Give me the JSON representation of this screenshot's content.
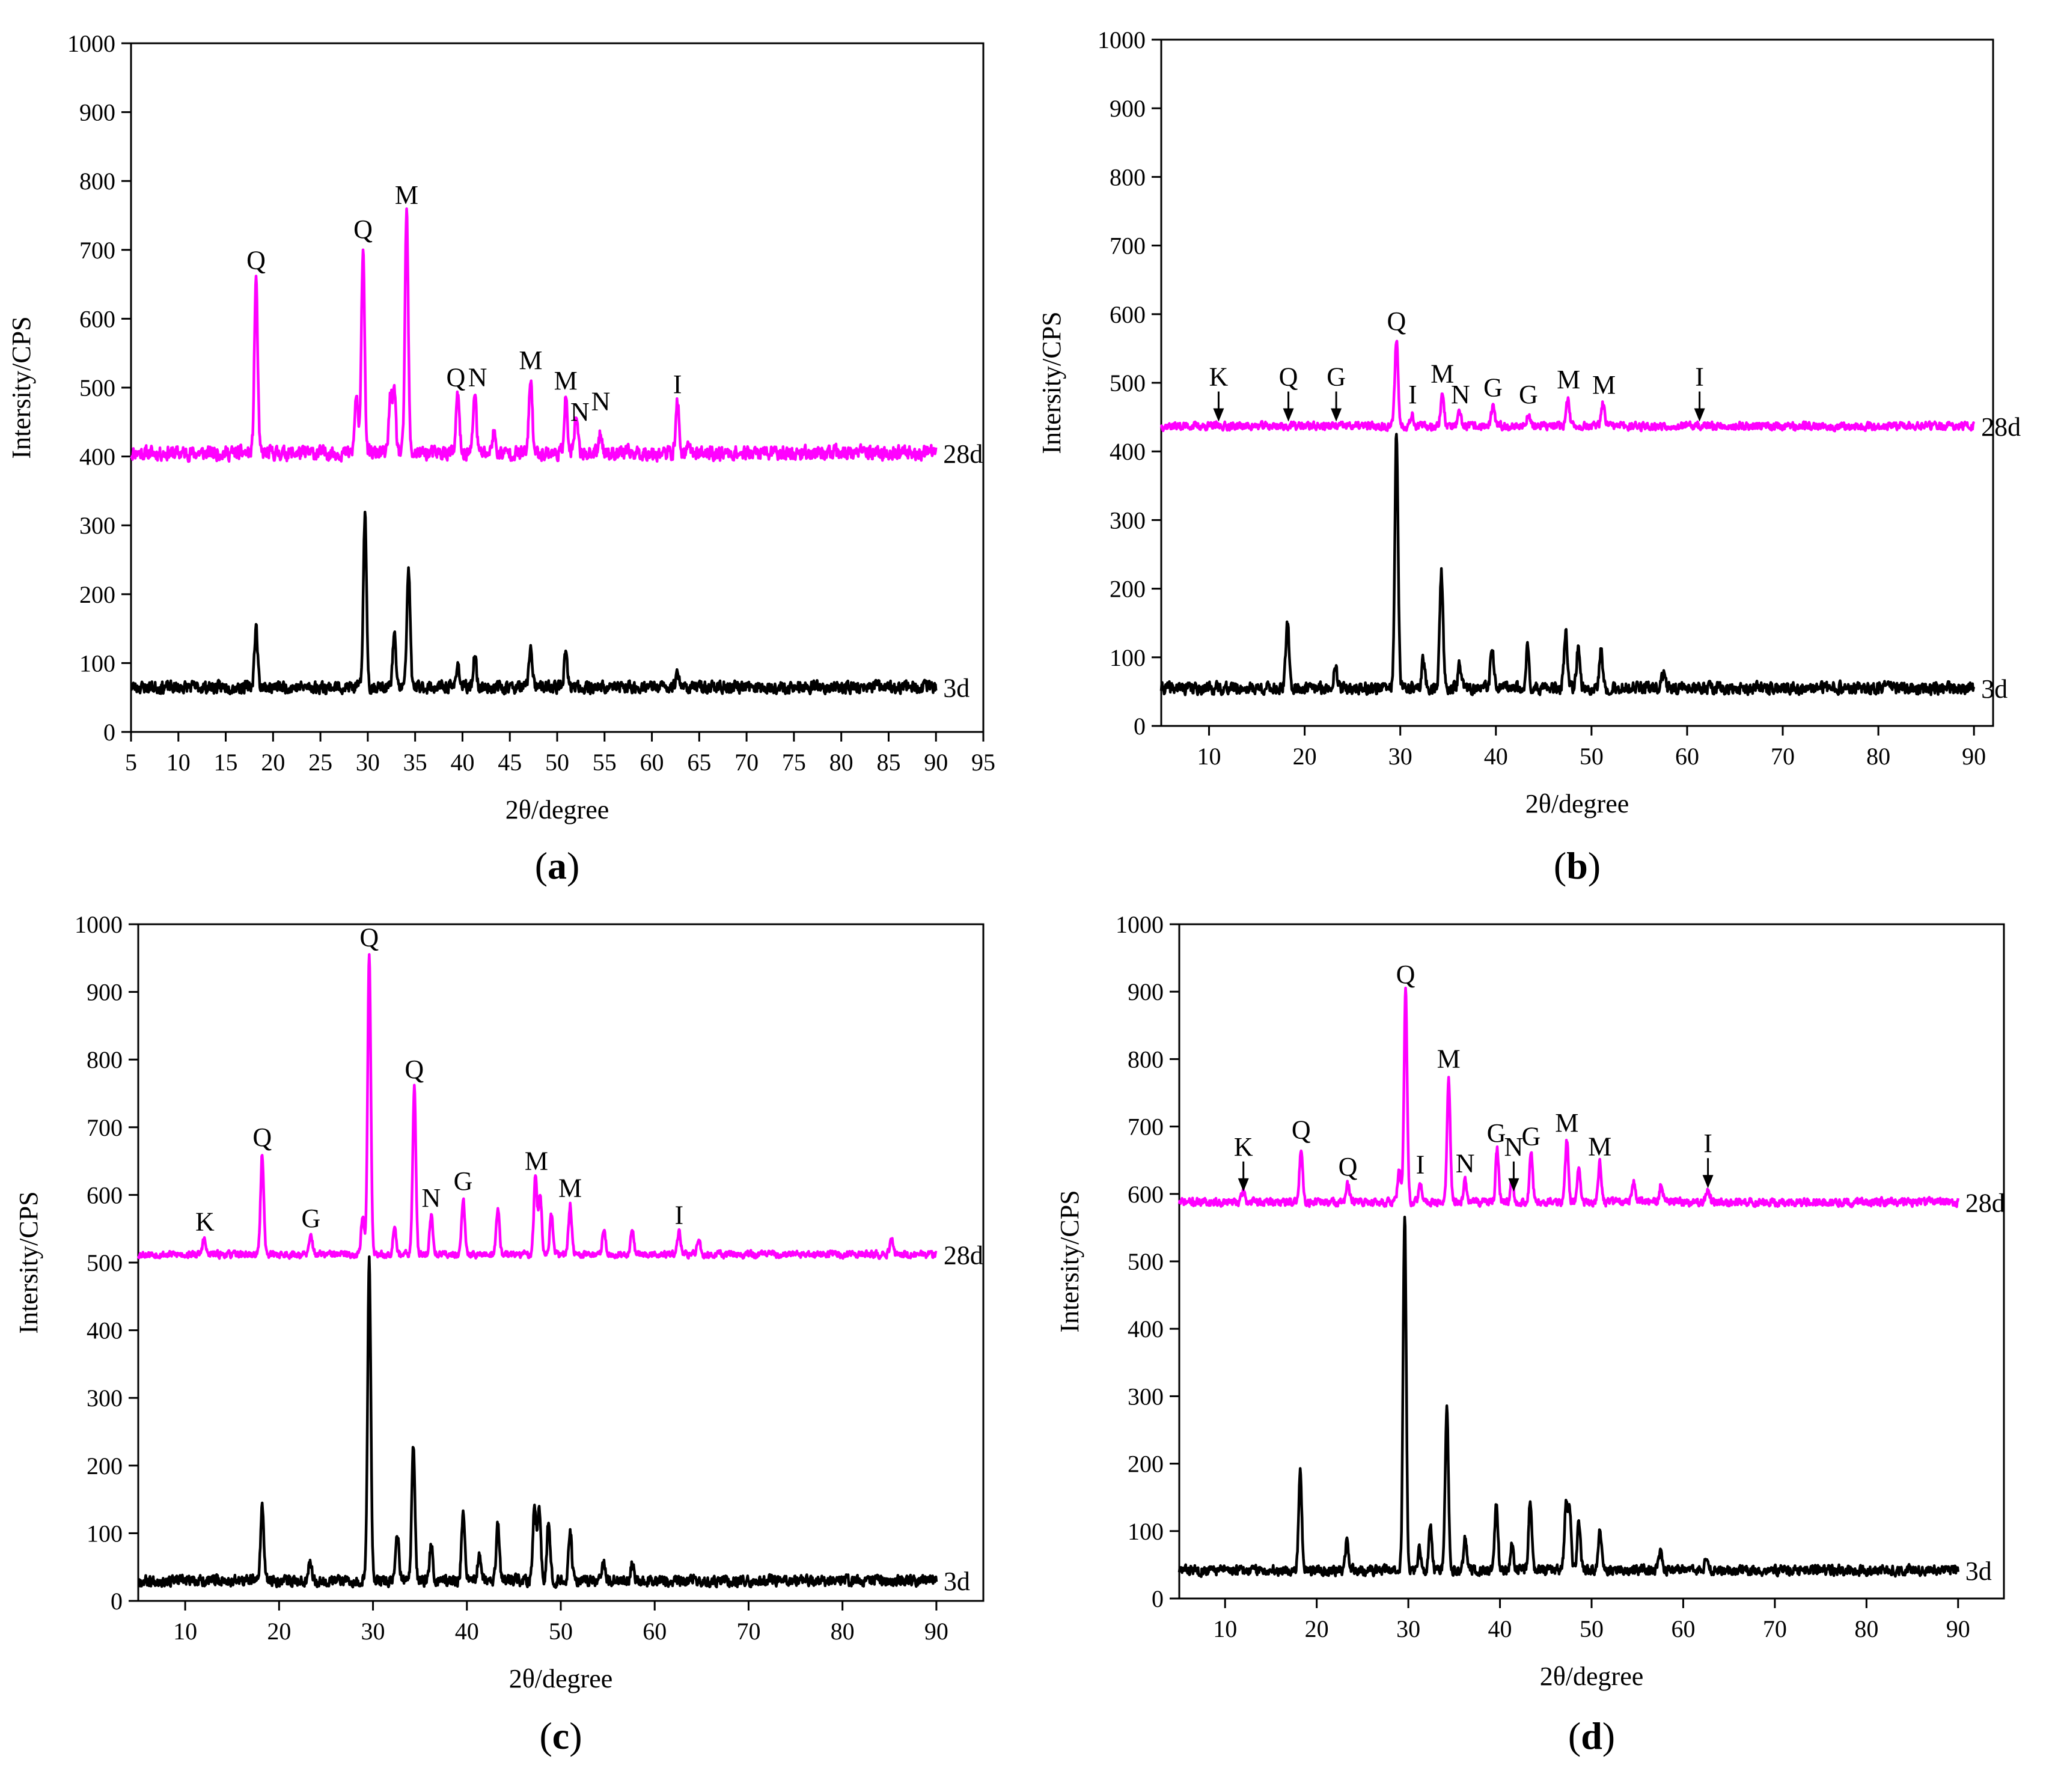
{
  "colors": {
    "series_28d": "#ff00ff",
    "series_3d": "#000000",
    "axis": "#000000"
  },
  "chart_data": [
    {
      "panel": "a",
      "panel_label_open": "(",
      "panel_label_letter": "a",
      "panel_label_close": ")",
      "type": "line",
      "xlabel": "2θ/degree",
      "ylabel": "Intersity/CPS",
      "xlim": [
        5,
        95
      ],
      "ylim": [
        0,
        1000
      ],
      "xticks": [
        5,
        10,
        15,
        20,
        25,
        30,
        35,
        40,
        45,
        50,
        55,
        60,
        65,
        70,
        75,
        80,
        85,
        90,
        95
      ],
      "yticks": [
        0,
        100,
        200,
        300,
        400,
        500,
        600,
        700,
        800,
        900,
        1000
      ],
      "series": [
        {
          "name": "28d",
          "baseline": 405,
          "noise": 14,
          "seed": 11,
          "peaks": [
            [
              18.2,
              660
            ],
            [
              29.5,
              705
            ],
            [
              28.8,
              490
            ],
            [
              32.4,
              487
            ],
            [
              32.8,
              487
            ],
            [
              34.1,
              755
            ],
            [
              39.5,
              490
            ],
            [
              41.3,
              495
            ],
            [
              43.3,
              435
            ],
            [
              47.2,
              515
            ],
            [
              50.9,
              485
            ],
            [
              52.0,
              455
            ],
            [
              54.6,
              435
            ],
            [
              62.7,
              480
            ],
            [
              64.0,
              415
            ]
          ]
        },
        {
          "name": "3d",
          "baseline": 65,
          "noise": 12,
          "seed": 23,
          "peaks": [
            [
              18.2,
              152
            ],
            [
              29.7,
              315
            ],
            [
              32.8,
              140
            ],
            [
              34.3,
              240
            ],
            [
              39.5,
              100
            ],
            [
              41.3,
              110
            ],
            [
              47.2,
              125
            ],
            [
              50.9,
              112
            ],
            [
              62.7,
              90
            ]
          ]
        }
      ],
      "annotations": [
        {
          "text": "Q",
          "x": 18.2,
          "y": 660,
          "arrow": false
        },
        {
          "text": "Q",
          "x": 29.5,
          "y": 705,
          "arrow": false
        },
        {
          "text": "M",
          "x": 34.1,
          "y": 755,
          "arrow": false
        },
        {
          "text": "Q",
          "x": 39.3,
          "y": 490,
          "arrow": false
        },
        {
          "text": "N",
          "x": 41.6,
          "y": 490,
          "arrow": false
        },
        {
          "text": "M",
          "x": 47.2,
          "y": 515,
          "arrow": false
        },
        {
          "text": "M",
          "x": 50.9,
          "y": 485,
          "arrow": false
        },
        {
          "text": "N",
          "x": 52.4,
          "y": 440,
          "arrow": false
        },
        {
          "text": "N",
          "x": 54.6,
          "y": 455,
          "arrow": false
        },
        {
          "text": "I",
          "x": 62.7,
          "y": 480,
          "arrow": false
        }
      ]
    },
    {
      "panel": "b",
      "panel_label_open": "(",
      "panel_label_letter": "b",
      "panel_label_close": ")",
      "type": "line",
      "xlabel": "2θ/degree",
      "ylabel": "Intersity/CPS",
      "xlim": [
        5,
        92
      ],
      "ylim": [
        0,
        1000
      ],
      "xticks": [
        10,
        20,
        30,
        40,
        50,
        60,
        70,
        80,
        90
      ],
      "yticks": [
        0,
        100,
        200,
        300,
        400,
        500,
        600,
        700,
        800,
        900,
        1000
      ],
      "series": [
        {
          "name": "28d",
          "baseline": 437,
          "noise": 8,
          "seed": 37,
          "peaks": [
            [
              29.6,
              565
            ],
            [
              31.2,
              455
            ],
            [
              34.4,
              485
            ],
            [
              36.2,
              455
            ],
            [
              39.7,
              465
            ],
            [
              43.4,
              455
            ],
            [
              47.5,
              478
            ],
            [
              51.2,
              470
            ]
          ]
        },
        {
          "name": "3d",
          "baseline": 55,
          "noise": 12,
          "seed": 41,
          "peaks": [
            [
              18.2,
              150
            ],
            [
              23.2,
              90
            ],
            [
              29.6,
              428
            ],
            [
              32.4,
              95
            ],
            [
              34.3,
              225
            ],
            [
              36.2,
              88
            ],
            [
              39.6,
              113
            ],
            [
              43.3,
              112
            ],
            [
              47.3,
              135
            ],
            [
              48.6,
              112
            ],
            [
              51.0,
              110
            ],
            [
              57.5,
              75
            ]
          ]
        }
      ],
      "annotations": [
        {
          "text": "K",
          "x": 11.0,
          "y": 440,
          "arrow": true
        },
        {
          "text": "Q",
          "x": 18.3,
          "y": 440,
          "arrow": true
        },
        {
          "text": "G",
          "x": 23.3,
          "y": 440,
          "arrow": true
        },
        {
          "text": "Q",
          "x": 29.6,
          "y": 565,
          "arrow": false
        },
        {
          "text": "I",
          "x": 31.3,
          "y": 458,
          "arrow": false
        },
        {
          "text": "M",
          "x": 34.4,
          "y": 488,
          "arrow": false
        },
        {
          "text": "N",
          "x": 36.3,
          "y": 458,
          "arrow": false
        },
        {
          "text": "G",
          "x": 39.7,
          "y": 468,
          "arrow": false
        },
        {
          "text": "G",
          "x": 43.4,
          "y": 458,
          "arrow": false
        },
        {
          "text": "M",
          "x": 47.6,
          "y": 480,
          "arrow": false
        },
        {
          "text": "M",
          "x": 51.3,
          "y": 472,
          "arrow": false
        },
        {
          "text": "I",
          "x": 61.3,
          "y": 440,
          "arrow": true
        }
      ]
    },
    {
      "panel": "c",
      "panel_label_open": "(",
      "panel_label_letter": "c",
      "panel_label_close": ")",
      "type": "line",
      "xlabel": "2θ/degree",
      "ylabel": "Intersity/CPS",
      "xlim": [
        5,
        95
      ],
      "ylim": [
        0,
        1000
      ],
      "xticks": [
        10,
        20,
        30,
        40,
        50,
        60,
        70,
        80,
        90
      ],
      "yticks": [
        0,
        100,
        200,
        300,
        400,
        500,
        600,
        700,
        800,
        900,
        1000
      ],
      "series": [
        {
          "name": "28d",
          "baseline": 512,
          "noise": 7,
          "seed": 53,
          "peaks": [
            [
              12.0,
              535
            ],
            [
              18.2,
              660
            ],
            [
              23.4,
              540
            ],
            [
              28.9,
              565
            ],
            [
              29.6,
              955
            ],
            [
              32.3,
              555
            ],
            [
              34.4,
              760
            ],
            [
              36.2,
              570
            ],
            [
              39.6,
              595
            ],
            [
              43.3,
              580
            ],
            [
              47.3,
              625
            ],
            [
              47.8,
              600
            ],
            [
              49.0,
              570
            ],
            [
              51.0,
              585
            ],
            [
              54.6,
              550
            ],
            [
              57.6,
              550
            ],
            [
              62.6,
              545
            ],
            [
              64.7,
              535
            ],
            [
              85.2,
              535
            ]
          ]
        },
        {
          "name": "3d",
          "baseline": 30,
          "noise": 11,
          "seed": 67,
          "peaks": [
            [
              18.2,
              140
            ],
            [
              23.3,
              60
            ],
            [
              29.6,
              505
            ],
            [
              32.6,
              100
            ],
            [
              34.3,
              230
            ],
            [
              36.2,
              85
            ],
            [
              39.6,
              125
            ],
            [
              41.3,
              65
            ],
            [
              43.3,
              112
            ],
            [
              47.2,
              145
            ],
            [
              47.7,
              140
            ],
            [
              48.7,
              120
            ],
            [
              51.0,
              105
            ],
            [
              54.6,
              60
            ],
            [
              57.6,
              55
            ]
          ]
        }
      ],
      "annotations": [
        {
          "text": "K",
          "x": 12.1,
          "y": 535,
          "arrow": false
        },
        {
          "text": "Q",
          "x": 18.2,
          "y": 660,
          "arrow": false
        },
        {
          "text": "G",
          "x": 23.4,
          "y": 540,
          "arrow": false
        },
        {
          "text": "Q",
          "x": 29.6,
          "y": 955,
          "arrow": false
        },
        {
          "text": "Q",
          "x": 34.4,
          "y": 760,
          "arrow": false
        },
        {
          "text": "N",
          "x": 36.2,
          "y": 570,
          "arrow": false
        },
        {
          "text": "G",
          "x": 39.6,
          "y": 595,
          "arrow": false
        },
        {
          "text": "M",
          "x": 47.4,
          "y": 625,
          "arrow": false
        },
        {
          "text": "M",
          "x": 51.0,
          "y": 585,
          "arrow": false
        },
        {
          "text": "I",
          "x": 62.6,
          "y": 545,
          "arrow": false
        }
      ]
    },
    {
      "panel": "d",
      "panel_label_open": "(",
      "panel_label_letter": "d",
      "panel_label_close": ")",
      "type": "line",
      "xlabel": "2θ/degree",
      "ylabel": "Intersity/CPS",
      "xlim": [
        5,
        95
      ],
      "ylim": [
        0,
        1000
      ],
      "xticks": [
        10,
        20,
        30,
        40,
        50,
        60,
        70,
        80,
        90
      ],
      "yticks": [
        0,
        100,
        200,
        300,
        400,
        500,
        600,
        700,
        800,
        900,
        1000
      ],
      "series": [
        {
          "name": "28d",
          "baseline": 588,
          "noise": 8,
          "seed": 71,
          "peaks": [
            [
              12.0,
              605
            ],
            [
              18.3,
              670
            ],
            [
              23.4,
              615
            ],
            [
              29.0,
              635
            ],
            [
              29.7,
              900
            ],
            [
              31.3,
              615
            ],
            [
              34.4,
              775
            ],
            [
              36.2,
              620
            ],
            [
              39.7,
              665
            ],
            [
              41.3,
              620
            ],
            [
              43.4,
              660
            ],
            [
              47.3,
              680
            ],
            [
              48.6,
              640
            ],
            [
              50.9,
              645
            ],
            [
              54.6,
              620
            ],
            [
              57.6,
              615
            ],
            [
              62.7,
              612
            ]
          ]
        },
        {
          "name": "3d",
          "baseline": 42,
          "noise": 10,
          "seed": 83,
          "peaks": [
            [
              18.2,
              192
            ],
            [
              23.3,
              85
            ],
            [
              29.6,
              572
            ],
            [
              31.2,
              75
            ],
            [
              32.4,
              105
            ],
            [
              34.2,
              285
            ],
            [
              36.2,
              90
            ],
            [
              39.6,
              142
            ],
            [
              41.3,
              80
            ],
            [
              43.3,
              145
            ],
            [
              47.2,
              135
            ],
            [
              47.6,
              130
            ],
            [
              48.6,
              118
            ],
            [
              50.9,
              105
            ],
            [
              57.5,
              70
            ],
            [
              62.6,
              65
            ]
          ]
        }
      ],
      "annotations": [
        {
          "text": "K",
          "x": 12.0,
          "y": 600,
          "arrow": true
        },
        {
          "text": "Q",
          "x": 18.3,
          "y": 670,
          "arrow": false
        },
        {
          "text": "Q",
          "x": 23.4,
          "y": 615,
          "arrow": false
        },
        {
          "text": "Q",
          "x": 29.7,
          "y": 900,
          "arrow": false
        },
        {
          "text": "I",
          "x": 31.3,
          "y": 618,
          "arrow": false
        },
        {
          "text": "M",
          "x": 34.4,
          "y": 775,
          "arrow": false
        },
        {
          "text": "N",
          "x": 36.2,
          "y": 620,
          "arrow": false
        },
        {
          "text": "G",
          "x": 39.6,
          "y": 665,
          "arrow": false
        },
        {
          "text": "N",
          "x": 41.5,
          "y": 600,
          "arrow": true
        },
        {
          "text": "G",
          "x": 43.4,
          "y": 660,
          "arrow": false
        },
        {
          "text": "M",
          "x": 47.3,
          "y": 680,
          "arrow": false
        },
        {
          "text": "M",
          "x": 50.9,
          "y": 645,
          "arrow": false
        },
        {
          "text": "I",
          "x": 62.7,
          "y": 605,
          "arrow": true
        }
      ]
    }
  ]
}
